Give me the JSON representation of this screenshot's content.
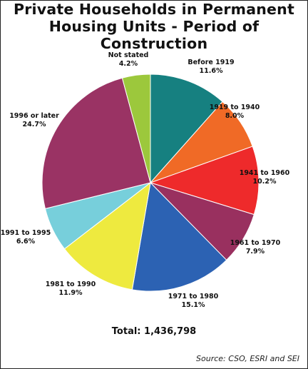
{
  "chart_data": {
    "type": "pie",
    "title_line1": "Private Households in Permanent",
    "title_line2": "Housing Units - Period of Construction",
    "slices": [
      {
        "label": "Before 1919",
        "percent_label": "11.6%",
        "value": 11.6,
        "color": "#168080"
      },
      {
        "label": "1919 to 1940",
        "percent_label": "8.0%",
        "value": 8.0,
        "color": "#f06a26"
      },
      {
        "label": "1941 to 1960",
        "percent_label": "10.2%",
        "value": 10.2,
        "color": "#ee2a2b"
      },
      {
        "label": "1961 to 1970",
        "percent_label": "7.9%",
        "value": 7.9,
        "color": "#99305f"
      },
      {
        "label": "1971 to 1980",
        "percent_label": "15.1%",
        "value": 15.1,
        "color": "#2c62b3"
      },
      {
        "label": "1981 to 1990",
        "percent_label": "11.9%",
        "value": 11.9,
        "color": "#eeea3f"
      },
      {
        "label": "1991 to 1995",
        "percent_label": "6.6%",
        "value": 6.6,
        "color": "#77cfdb"
      },
      {
        "label": "1996 or later",
        "percent_label": "24.7%",
        "value": 24.7,
        "color": "#9a3364"
      },
      {
        "label": "Not stated",
        "percent_label": "4.2%",
        "value": 4.2,
        "color": "#9cc83c"
      }
    ],
    "total_text": "Total: 1,436,798",
    "source": "Source: CSO, ESRI and SEI"
  }
}
